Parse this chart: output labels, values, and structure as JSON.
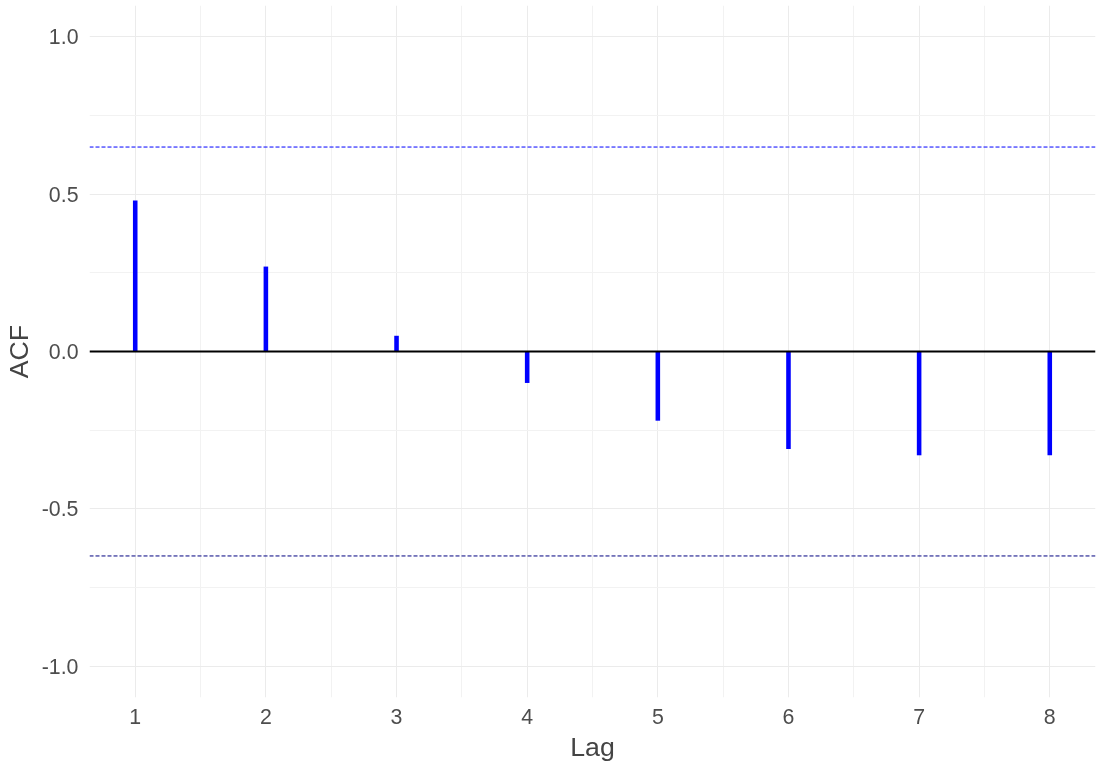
{
  "chart_data": {
    "type": "bar",
    "xlabel": "Lag",
    "ylabel": "ACF",
    "x": [
      1,
      2,
      3,
      4,
      5,
      6,
      7,
      8
    ],
    "series": [
      {
        "color": "#0000ff",
        "values": [
          0.48,
          0.27,
          0.05,
          -0.1,
          -0.22,
          -0.31,
          -0.33,
          -0.33
        ]
      }
    ],
    "xlim": [
      0.65,
      8.35
    ],
    "xticks": [
      1,
      2,
      3,
      4,
      5,
      6,
      7,
      8
    ],
    "ylim": [
      -1.1,
      1.1
    ],
    "yticks": [
      {
        "value": -1.0,
        "label": "-1.0"
      },
      {
        "value": -0.5,
        "label": "-0.5"
      },
      {
        "value": 0.0,
        "label": "0.0"
      },
      {
        "value": 0.5,
        "label": "0.5"
      },
      {
        "value": 1.0,
        "label": "1.0"
      }
    ],
    "ref_lines": [
      {
        "axis": "y",
        "value": 0,
        "color": "#000000",
        "line_style": "solid"
      },
      {
        "axis": "y",
        "value": 0.65,
        "color": "#0000ff",
        "line_style": "dashed"
      },
      {
        "axis": "y",
        "value": -0.65,
        "color": "#000080",
        "line_style": "dashed"
      }
    ],
    "grid": true
  }
}
